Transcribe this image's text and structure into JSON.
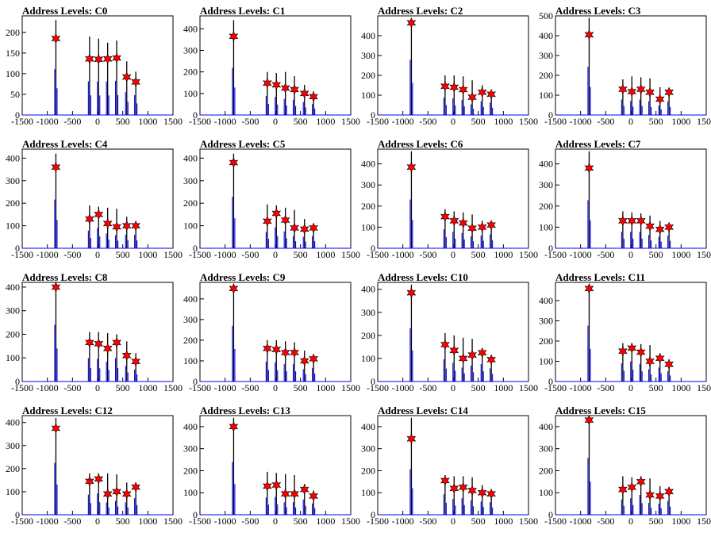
{
  "figure": {
    "panel_title_prefix": "Address Levels: "
  },
  "style": {
    "histogram_color": "#0000ff",
    "black_spike_color": "#000000",
    "marker_fill": "#ff0000",
    "marker_stroke": "#000000"
  },
  "chart_data": [
    {
      "type": "histogram",
      "title": "Address Levels: C0",
      "xlim": [
        -1500,
        1500
      ],
      "ylim": [
        0,
        240
      ],
      "yticks": [
        0,
        50,
        100,
        150,
        200
      ],
      "xticks": [
        -1500,
        -1000,
        -500,
        0,
        500,
        1000,
        1500
      ],
      "peaks": [
        {
          "x": -830,
          "y": 185
        },
        {
          "x": -160,
          "y": 136
        },
        {
          "x": 20,
          "y": 135
        },
        {
          "x": 200,
          "y": 136
        },
        {
          "x": 380,
          "y": 138
        },
        {
          "x": 580,
          "y": 92
        },
        {
          "x": 760,
          "y": 80
        }
      ],
      "spike_heights": [
        230,
        190,
        185,
        175,
        180,
        130,
        105
      ]
    },
    {
      "type": "histogram",
      "title": "Address Levels: C1",
      "xlim": [
        -1500,
        1500
      ],
      "ylim": [
        0,
        460
      ],
      "yticks": [
        0,
        100,
        200,
        300,
        400
      ],
      "xticks": [
        -1500,
        -1000,
        -500,
        0,
        500,
        1000,
        1500
      ],
      "peaks": [
        {
          "x": -830,
          "y": 365
        },
        {
          "x": -160,
          "y": 148
        },
        {
          "x": 20,
          "y": 140
        },
        {
          "x": 200,
          "y": 125
        },
        {
          "x": 380,
          "y": 118
        },
        {
          "x": 580,
          "y": 100
        },
        {
          "x": 760,
          "y": 85
        }
      ],
      "spike_heights": [
        440,
        200,
        195,
        200,
        180,
        140,
        110
      ]
    },
    {
      "type": "histogram",
      "title": "Address Levels: C2",
      "xlim": [
        -1500,
        1500
      ],
      "ylim": [
        0,
        500
      ],
      "yticks": [
        0,
        100,
        200,
        300,
        400
      ],
      "xticks": [
        -1500,
        -1000,
        -500,
        0,
        500,
        1000,
        1500
      ],
      "peaks": [
        {
          "x": -830,
          "y": 465
        },
        {
          "x": -160,
          "y": 145
        },
        {
          "x": 20,
          "y": 140
        },
        {
          "x": 200,
          "y": 128
        },
        {
          "x": 380,
          "y": 90
        },
        {
          "x": 580,
          "y": 115
        },
        {
          "x": 760,
          "y": 105
        }
      ],
      "spike_heights": [
        485,
        200,
        200,
        195,
        175,
        150,
        120
      ]
    },
    {
      "type": "histogram",
      "title": "Address Levels: C3",
      "xlim": [
        -1500,
        1500
      ],
      "ylim": [
        0,
        500
      ],
      "yticks": [
        0,
        100,
        200,
        300,
        400,
        500
      ],
      "xticks": [
        -1500,
        -1000,
        -500,
        0,
        500,
        1000,
        1500
      ],
      "peaks": [
        {
          "x": -830,
          "y": 405
        },
        {
          "x": -160,
          "y": 130
        },
        {
          "x": 20,
          "y": 118
        },
        {
          "x": 200,
          "y": 130
        },
        {
          "x": 380,
          "y": 115
        },
        {
          "x": 580,
          "y": 80
        },
        {
          "x": 760,
          "y": 115
        }
      ],
      "spike_heights": [
        490,
        180,
        195,
        190,
        185,
        140,
        120
      ]
    },
    {
      "type": "histogram",
      "title": "Address Levels: C4",
      "xlim": [
        -1500,
        1500
      ],
      "ylim": [
        0,
        440
      ],
      "yticks": [
        0,
        100,
        200,
        300,
        400
      ],
      "xticks": [
        -1500,
        -1000,
        -500,
        0,
        500,
        1000,
        1500
      ],
      "peaks": [
        {
          "x": -830,
          "y": 360
        },
        {
          "x": -160,
          "y": 130
        },
        {
          "x": 20,
          "y": 150
        },
        {
          "x": 200,
          "y": 110
        },
        {
          "x": 380,
          "y": 95
        },
        {
          "x": 580,
          "y": 100
        },
        {
          "x": 760,
          "y": 100
        }
      ],
      "spike_heights": [
        420,
        190,
        185,
        180,
        175,
        140,
        110
      ]
    },
    {
      "type": "histogram",
      "title": "Address Levels: C5",
      "xlim": [
        -1500,
        1500
      ],
      "ylim": [
        0,
        440
      ],
      "yticks": [
        0,
        100,
        200,
        300,
        400
      ],
      "xticks": [
        -1500,
        -1000,
        -500,
        0,
        500,
        1000,
        1500
      ],
      "peaks": [
        {
          "x": -830,
          "y": 380
        },
        {
          "x": -160,
          "y": 120
        },
        {
          "x": 20,
          "y": 155
        },
        {
          "x": 200,
          "y": 125
        },
        {
          "x": 380,
          "y": 90
        },
        {
          "x": 580,
          "y": 85
        },
        {
          "x": 760,
          "y": 90
        }
      ],
      "spike_heights": [
        420,
        195,
        190,
        180,
        170,
        130,
        110
      ]
    },
    {
      "type": "histogram",
      "title": "Address Levels: C6",
      "xlim": [
        -1500,
        1500
      ],
      "ylim": [
        0,
        470
      ],
      "yticks": [
        0,
        100,
        200,
        300,
        400
      ],
      "xticks": [
        -1500,
        -1000,
        -500,
        0,
        500,
        1000,
        1500
      ],
      "peaks": [
        {
          "x": -830,
          "y": 385
        },
        {
          "x": -160,
          "y": 150
        },
        {
          "x": 20,
          "y": 130
        },
        {
          "x": 200,
          "y": 120
        },
        {
          "x": 380,
          "y": 95
        },
        {
          "x": 580,
          "y": 100
        },
        {
          "x": 760,
          "y": 110
        }
      ],
      "spike_heights": [
        460,
        185,
        175,
        170,
        160,
        130,
        120
      ]
    },
    {
      "type": "histogram",
      "title": "Address Levels: C7",
      "xlim": [
        -1500,
        1500
      ],
      "ylim": [
        0,
        470
      ],
      "yticks": [
        0,
        100,
        200,
        300,
        400
      ],
      "xticks": [
        -1500,
        -1000,
        -500,
        0,
        500,
        1000,
        1500
      ],
      "peaks": [
        {
          "x": -830,
          "y": 380
        },
        {
          "x": -160,
          "y": 130
        },
        {
          "x": 20,
          "y": 130
        },
        {
          "x": 200,
          "y": 130
        },
        {
          "x": 380,
          "y": 105
        },
        {
          "x": 580,
          "y": 90
        },
        {
          "x": 760,
          "y": 100
        }
      ],
      "spike_heights": [
        460,
        175,
        170,
        165,
        155,
        130,
        115
      ]
    },
    {
      "type": "histogram",
      "title": "Address Levels: C8",
      "xlim": [
        -1500,
        1500
      ],
      "ylim": [
        0,
        420
      ],
      "yticks": [
        0,
        100,
        200,
        300,
        400
      ],
      "xticks": [
        -1500,
        -1000,
        -500,
        0,
        500,
        1000,
        1500
      ],
      "peaks": [
        {
          "x": -830,
          "y": 400
        },
        {
          "x": -160,
          "y": 165
        },
        {
          "x": 20,
          "y": 160
        },
        {
          "x": 200,
          "y": 140
        },
        {
          "x": 380,
          "y": 165
        },
        {
          "x": 580,
          "y": 110
        },
        {
          "x": 760,
          "y": 85
        }
      ],
      "spike_heights": [
        410,
        210,
        210,
        205,
        200,
        170,
        120
      ]
    },
    {
      "type": "histogram",
      "title": "Address Levels: C9",
      "xlim": [
        -1500,
        1500
      ],
      "ylim": [
        0,
        480
      ],
      "yticks": [
        0,
        100,
        200,
        300,
        400
      ],
      "xticks": [
        -1500,
        -1000,
        -500,
        0,
        500,
        1000,
        1500
      ],
      "peaks": [
        {
          "x": -830,
          "y": 450
        },
        {
          "x": -160,
          "y": 160
        },
        {
          "x": 20,
          "y": 155
        },
        {
          "x": 200,
          "y": 140
        },
        {
          "x": 380,
          "y": 140
        },
        {
          "x": 580,
          "y": 100
        },
        {
          "x": 760,
          "y": 110
        }
      ],
      "spike_heights": [
        470,
        200,
        200,
        195,
        190,
        150,
        125
      ]
    },
    {
      "type": "histogram",
      "title": "Address Levels: C10",
      "xlim": [
        -1500,
        1500
      ],
      "ylim": [
        0,
        430
      ],
      "yticks": [
        0,
        100,
        200,
        300,
        400
      ],
      "xticks": [
        -1500,
        -1000,
        -500,
        0,
        500,
        1000,
        1500
      ],
      "peaks": [
        {
          "x": -830,
          "y": 385
        },
        {
          "x": -160,
          "y": 160
        },
        {
          "x": 20,
          "y": 135
        },
        {
          "x": 200,
          "y": 100
        },
        {
          "x": 380,
          "y": 115
        },
        {
          "x": 580,
          "y": 125
        },
        {
          "x": 760,
          "y": 95
        }
      ],
      "spike_heights": [
        420,
        210,
        200,
        190,
        185,
        140,
        115
      ]
    },
    {
      "type": "histogram",
      "title": "Address Levels: C11",
      "xlim": [
        -1500,
        1500
      ],
      "ylim": [
        0,
        490
      ],
      "yticks": [
        0,
        100,
        200,
        300,
        400
      ],
      "xticks": [
        -1500,
        -1000,
        -500,
        0,
        500,
        1000,
        1500
      ],
      "peaks": [
        {
          "x": -830,
          "y": 460
        },
        {
          "x": -160,
          "y": 150
        },
        {
          "x": 20,
          "y": 165
        },
        {
          "x": 200,
          "y": 145
        },
        {
          "x": 380,
          "y": 100
        },
        {
          "x": 580,
          "y": 115
        },
        {
          "x": 760,
          "y": 85
        }
      ],
      "spike_heights": [
        480,
        190,
        190,
        185,
        180,
        140,
        110
      ]
    },
    {
      "type": "histogram",
      "title": "Address Levels: C12",
      "xlim": [
        -1500,
        1500
      ],
      "ylim": [
        0,
        430
      ],
      "yticks": [
        0,
        100,
        200,
        300,
        400
      ],
      "xticks": [
        -1500,
        -1000,
        -500,
        0,
        500,
        1000,
        1500
      ],
      "peaks": [
        {
          "x": -830,
          "y": 375
        },
        {
          "x": -160,
          "y": 145
        },
        {
          "x": 20,
          "y": 155
        },
        {
          "x": 200,
          "y": 90
        },
        {
          "x": 380,
          "y": 100
        },
        {
          "x": 580,
          "y": 90
        },
        {
          "x": 760,
          "y": 120
        }
      ],
      "spike_heights": [
        420,
        180,
        180,
        180,
        175,
        140,
        115
      ]
    },
    {
      "type": "histogram",
      "title": "Address Levels: C13",
      "xlim": [
        -1500,
        1500
      ],
      "ylim": [
        0,
        450
      ],
      "yticks": [
        0,
        100,
        200,
        300,
        400
      ],
      "xticks": [
        -1500,
        -1000,
        -500,
        0,
        500,
        1000,
        1500
      ],
      "peaks": [
        {
          "x": -830,
          "y": 400
        },
        {
          "x": -160,
          "y": 130
        },
        {
          "x": 20,
          "y": 135
        },
        {
          "x": 200,
          "y": 95
        },
        {
          "x": 380,
          "y": 95
        },
        {
          "x": 580,
          "y": 115
        },
        {
          "x": 760,
          "y": 85
        }
      ],
      "spike_heights": [
        440,
        195,
        190,
        185,
        180,
        140,
        110
      ]
    },
    {
      "type": "histogram",
      "title": "Address Levels: C14",
      "xlim": [
        -1500,
        1500
      ],
      "ylim": [
        0,
        450
      ],
      "yticks": [
        0,
        100,
        200,
        300,
        400
      ],
      "xticks": [
        -1500,
        -1000,
        -500,
        0,
        500,
        1000,
        1500
      ],
      "peaks": [
        {
          "x": -830,
          "y": 345
        },
        {
          "x": -160,
          "y": 155
        },
        {
          "x": 20,
          "y": 120
        },
        {
          "x": 200,
          "y": 125
        },
        {
          "x": 380,
          "y": 110
        },
        {
          "x": 580,
          "y": 100
        },
        {
          "x": 760,
          "y": 95
        }
      ],
      "spike_heights": [
        440,
        180,
        175,
        175,
        170,
        135,
        110
      ]
    },
    {
      "type": "histogram",
      "title": "Address Levels: C15",
      "xlim": [
        -1500,
        1500
      ],
      "ylim": [
        0,
        450
      ],
      "yticks": [
        0,
        100,
        200,
        300,
        400
      ],
      "xticks": [
        -1500,
        -1000,
        -500,
        0,
        500,
        1000,
        1500
      ],
      "peaks": [
        {
          "x": -830,
          "y": 430
        },
        {
          "x": -160,
          "y": 115
        },
        {
          "x": 20,
          "y": 125
        },
        {
          "x": 200,
          "y": 150
        },
        {
          "x": 380,
          "y": 90
        },
        {
          "x": 580,
          "y": 85
        },
        {
          "x": 760,
          "y": 105
        }
      ],
      "spike_heights": [
        440,
        175,
        170,
        175,
        165,
        130,
        115
      ]
    }
  ]
}
